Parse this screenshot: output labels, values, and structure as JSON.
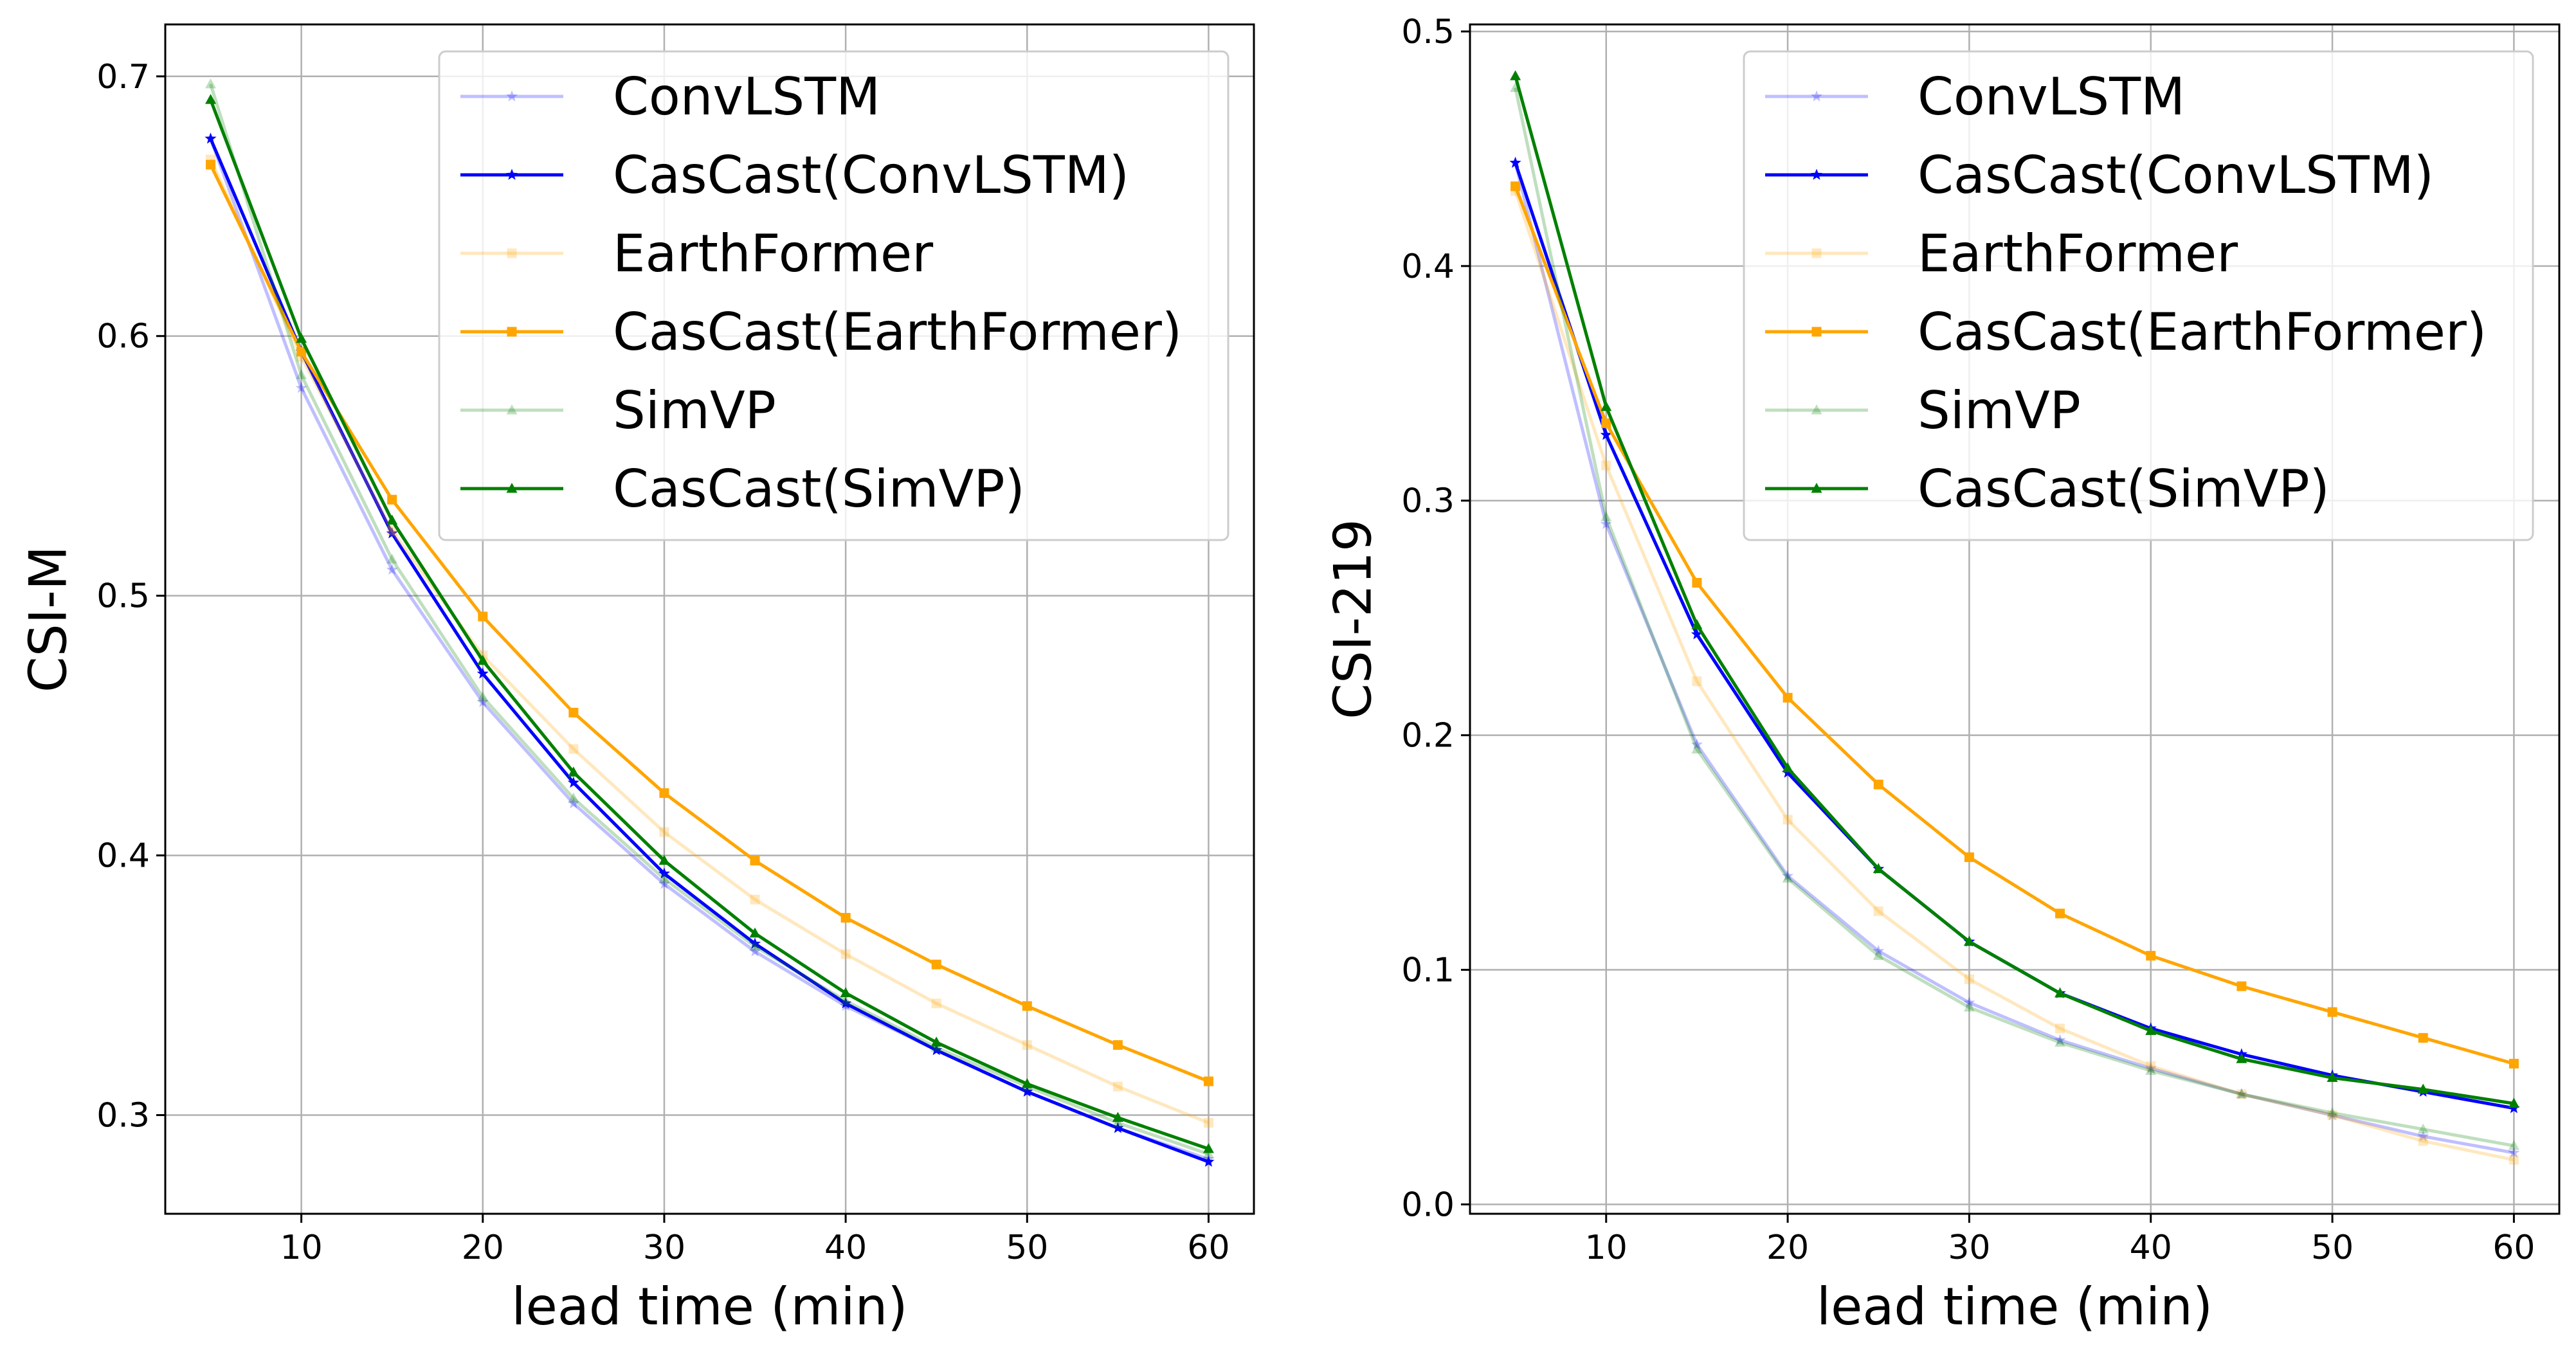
{
  "chart_data": [
    {
      "type": "line",
      "title": "",
      "xlabel": "lead time (min)",
      "ylabel": "CSI-M",
      "xlim": [
        2.5,
        62.5
      ],
      "ylim": [
        0.262,
        0.72
      ],
      "xticks": [
        10,
        20,
        30,
        40,
        50,
        60
      ],
      "xtick_labels": [
        "10",
        "20",
        "30",
        "40",
        "50",
        "60"
      ],
      "yticks": [
        0.3,
        0.4,
        0.5,
        0.6,
        0.7
      ],
      "ytick_labels": [
        "0.3",
        "0.4",
        "0.5",
        "0.6",
        "0.7"
      ],
      "grid": true,
      "legend_position": "top-right",
      "x": [
        5,
        10,
        15,
        20,
        25,
        30,
        35,
        40,
        45,
        50,
        55,
        60
      ],
      "series": [
        {
          "name": "ConvLSTM",
          "color": "#0000ff",
          "faded": true,
          "marker": "star",
          "values": [
            0.676,
            0.58,
            0.51,
            0.459,
            0.42,
            0.389,
            0.363,
            0.342,
            0.325,
            0.309,
            0.295,
            0.283
          ]
        },
        {
          "name": "CasCast(ConvLSTM)",
          "color": "#0000ff",
          "faded": false,
          "marker": "star",
          "values": [
            0.676,
            0.594,
            0.524,
            0.47,
            0.428,
            0.393,
            0.366,
            0.343,
            0.325,
            0.309,
            0.295,
            0.282
          ]
        },
        {
          "name": "EarthFormer",
          "color": "#ffa500",
          "faded": true,
          "marker": "square",
          "values": [
            0.668,
            0.592,
            0.525,
            0.477,
            0.441,
            0.409,
            0.383,
            0.362,
            0.343,
            0.327,
            0.311,
            0.297
          ]
        },
        {
          "name": "CasCast(EarthFormer)",
          "color": "#ffa500",
          "faded": false,
          "marker": "square",
          "values": [
            0.666,
            0.594,
            0.537,
            0.492,
            0.455,
            0.424,
            0.398,
            0.376,
            0.358,
            0.342,
            0.327,
            0.313
          ]
        },
        {
          "name": "SimVP",
          "color": "#008000",
          "faded": true,
          "marker": "triangle",
          "values": [
            0.697,
            0.585,
            0.514,
            0.461,
            0.422,
            0.391,
            0.365,
            0.344,
            0.326,
            0.311,
            0.297,
            0.285
          ]
        },
        {
          "name": "CasCast(SimVP)",
          "color": "#008000",
          "faded": false,
          "marker": "triangle",
          "values": [
            0.691,
            0.599,
            0.529,
            0.475,
            0.432,
            0.398,
            0.37,
            0.347,
            0.328,
            0.312,
            0.299,
            0.287
          ]
        }
      ]
    },
    {
      "type": "line",
      "title": "",
      "xlabel": "lead time (min)",
      "ylabel": "CSI-219",
      "xlim": [
        2.5,
        62.5
      ],
      "ylim": [
        -0.004,
        0.503
      ],
      "xticks": [
        10,
        20,
        30,
        40,
        50,
        60
      ],
      "xtick_labels": [
        "10",
        "20",
        "30",
        "40",
        "50",
        "60"
      ],
      "yticks": [
        0.0,
        0.1,
        0.2,
        0.3,
        0.4,
        0.5
      ],
      "ytick_labels": [
        "0.0",
        "0.1",
        "0.2",
        "0.3",
        "0.4",
        "0.5"
      ],
      "grid": true,
      "legend_position": "top-right",
      "x": [
        5,
        10,
        15,
        20,
        25,
        30,
        35,
        40,
        45,
        50,
        55,
        60
      ],
      "series": [
        {
          "name": "ConvLSTM",
          "color": "#0000ff",
          "faded": true,
          "marker": "star",
          "values": [
            0.444,
            0.29,
            0.196,
            0.14,
            0.108,
            0.086,
            0.07,
            0.058,
            0.047,
            0.038,
            0.029,
            0.022
          ]
        },
        {
          "name": "CasCast(ConvLSTM)",
          "color": "#0000ff",
          "faded": false,
          "marker": "star",
          "values": [
            0.444,
            0.328,
            0.243,
            0.184,
            0.143,
            0.112,
            0.09,
            0.075,
            0.064,
            0.055,
            0.048,
            0.041
          ]
        },
        {
          "name": "EarthFormer",
          "color": "#ffa500",
          "faded": true,
          "marker": "square",
          "values": [
            0.432,
            0.315,
            0.223,
            0.164,
            0.125,
            0.096,
            0.075,
            0.059,
            0.047,
            0.038,
            0.027,
            0.019
          ]
        },
        {
          "name": "CasCast(EarthFormer)",
          "color": "#ffa500",
          "faded": false,
          "marker": "square",
          "values": [
            0.434,
            0.333,
            0.265,
            0.216,
            0.179,
            0.148,
            0.124,
            0.106,
            0.093,
            0.082,
            0.071,
            0.06
          ]
        },
        {
          "name": "SimVP",
          "color": "#008000",
          "faded": true,
          "marker": "triangle",
          "values": [
            0.476,
            0.293,
            0.194,
            0.139,
            0.106,
            0.084,
            0.069,
            0.057,
            0.047,
            0.039,
            0.032,
            0.025
          ]
        },
        {
          "name": "CasCast(SimVP)",
          "color": "#008000",
          "faded": false,
          "marker": "triangle",
          "values": [
            0.481,
            0.34,
            0.247,
            0.186,
            0.143,
            0.112,
            0.09,
            0.074,
            0.062,
            0.054,
            0.049,
            0.043
          ]
        }
      ]
    }
  ]
}
